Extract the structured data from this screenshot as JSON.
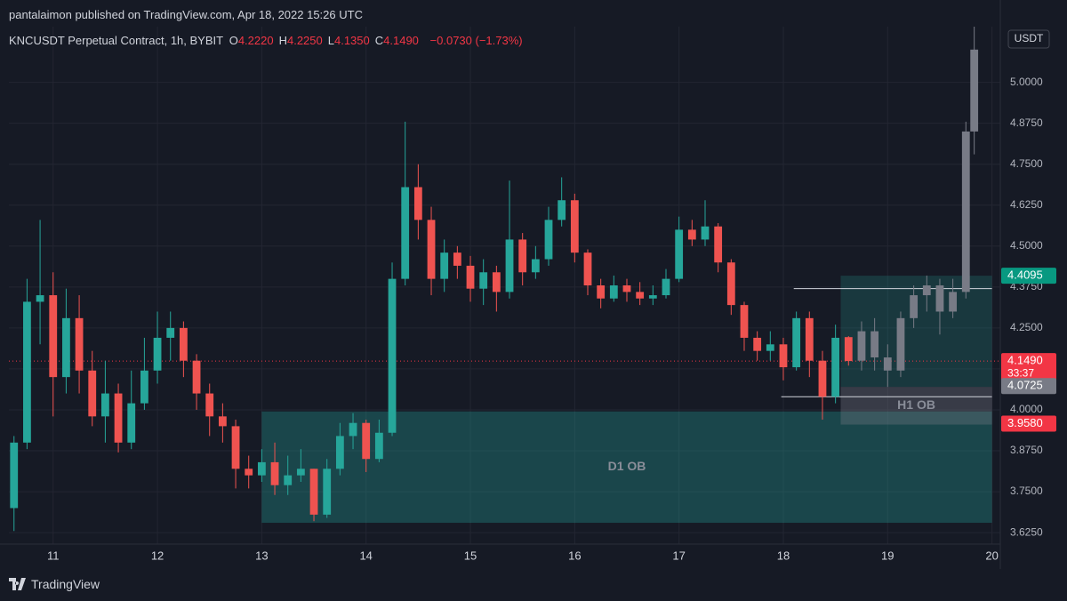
{
  "header": {
    "publisher": "pantalaimon published on TradingView.com, Apr 18, 2022 15:26 UTC",
    "symbol": "KNCUSDT Perpetual Contract, 1h, BYBIT",
    "ohlc": [
      {
        "key": "O",
        "value": "4.2220"
      },
      {
        "key": "H",
        "value": "4.2250"
      },
      {
        "key": "L",
        "value": "4.1350"
      },
      {
        "key": "C",
        "value": "4.1490"
      }
    ],
    "change": "−0.0730 (−1.73%)"
  },
  "footer": {
    "brand": "TradingView"
  },
  "chart_data": {
    "type": "candlestick",
    "currency": "USDT",
    "up_color": "#26a69a",
    "down_color": "#ef5350",
    "ghost_color": "#787b86",
    "grid": true,
    "xlim": [
      10.576,
      20.08
    ],
    "ylim": [
      3.59,
      5.17
    ],
    "xticks": [
      11,
      12,
      13,
      14,
      15,
      16,
      17,
      18,
      19,
      20
    ],
    "yticks": [
      {
        "value": 3.625,
        "label": "3.6250"
      },
      {
        "value": 3.75,
        "label": "3.7500"
      },
      {
        "value": 3.875,
        "label": "3.8750"
      },
      {
        "value": 4.0,
        "label": "4.0000"
      },
      {
        "value": 4.125,
        "label": "4.1250"
      },
      {
        "value": 4.25,
        "label": "4.2500"
      },
      {
        "value": 4.375,
        "label": "4.3750"
      },
      {
        "value": 4.5,
        "label": "4.5000"
      },
      {
        "value": 4.625,
        "label": "4.6250"
      },
      {
        "value": 4.75,
        "label": "4.7500"
      },
      {
        "value": 4.875,
        "label": "4.8750"
      },
      {
        "value": 5.0,
        "label": "5.0000"
      }
    ],
    "candles": {
      "x": [
        10.625,
        10.75,
        10.875,
        11.0,
        11.125,
        11.25,
        11.375,
        11.5,
        11.625,
        11.75,
        11.875,
        12.0,
        12.125,
        12.25,
        12.375,
        12.5,
        12.625,
        12.75,
        12.875,
        13.0,
        13.125,
        13.25,
        13.375,
        13.5,
        13.625,
        13.75,
        13.875,
        14.0,
        14.125,
        14.25,
        14.375,
        14.5,
        14.625,
        14.75,
        14.875,
        15.0,
        15.125,
        15.25,
        15.375,
        15.5,
        15.625,
        15.75,
        15.875,
        16.0,
        16.125,
        16.25,
        16.375,
        16.5,
        16.625,
        16.75,
        16.875,
        17.0,
        17.125,
        17.25,
        17.375,
        17.5,
        17.625,
        17.75,
        17.875,
        18.0,
        18.125,
        18.25,
        18.375,
        18.5,
        18.625
      ],
      "open": [
        3.7,
        3.9,
        4.33,
        4.35,
        4.1,
        4.28,
        4.12,
        3.98,
        4.05,
        3.9,
        4.02,
        4.12,
        4.22,
        4.25,
        4.15,
        4.05,
        3.98,
        3.95,
        3.82,
        3.8,
        3.84,
        3.77,
        3.8,
        3.82,
        3.68,
        3.82,
        3.92,
        3.96,
        3.85,
        3.93,
        4.4,
        4.68,
        4.58,
        4.4,
        4.48,
        4.44,
        4.37,
        4.42,
        4.36,
        4.52,
        4.42,
        4.46,
        4.58,
        4.64,
        4.48,
        4.38,
        4.34,
        4.38,
        4.36,
        4.34,
        4.35,
        4.4,
        4.55,
        4.52,
        4.56,
        4.45,
        4.32,
        4.22,
        4.18,
        4.2,
        4.13,
        4.28,
        4.15,
        4.04,
        4.222
      ],
      "high": [
        3.92,
        4.4,
        4.58,
        4.42,
        4.37,
        4.35,
        4.18,
        4.15,
        4.08,
        4.12,
        4.22,
        4.3,
        4.3,
        4.27,
        4.17,
        4.08,
        4.02,
        3.97,
        3.86,
        3.88,
        3.9,
        3.86,
        3.88,
        3.82,
        3.85,
        3.96,
        3.99,
        3.97,
        3.97,
        4.45,
        4.88,
        4.75,
        4.62,
        4.52,
        4.5,
        4.47,
        4.46,
        4.44,
        4.7,
        4.54,
        4.5,
        4.62,
        4.71,
        4.66,
        4.49,
        4.4,
        4.41,
        4.4,
        4.39,
        4.38,
        4.43,
        4.59,
        4.58,
        4.64,
        4.57,
        4.46,
        4.33,
        4.24,
        4.24,
        4.22,
        4.3,
        4.3,
        4.18,
        4.26,
        4.225
      ],
      "low": [
        3.63,
        3.88,
        4.2,
        3.98,
        4.05,
        4.05,
        3.95,
        3.9,
        3.87,
        3.88,
        4.0,
        4.08,
        4.15,
        4.1,
        4.0,
        3.92,
        3.9,
        3.76,
        3.76,
        3.78,
        3.74,
        3.74,
        3.78,
        3.66,
        3.67,
        3.8,
        3.88,
        3.81,
        3.84,
        3.92,
        4.38,
        4.52,
        4.35,
        4.36,
        4.4,
        4.33,
        4.32,
        4.3,
        4.34,
        4.38,
        4.4,
        4.44,
        4.56,
        4.45,
        4.35,
        4.31,
        4.33,
        4.33,
        4.32,
        4.32,
        4.34,
        4.39,
        4.5,
        4.5,
        4.42,
        4.29,
        4.18,
        4.15,
        4.15,
        4.09,
        4.12,
        4.1,
        3.97,
        4.02,
        4.135
      ],
      "close": [
        3.9,
        4.33,
        4.35,
        4.1,
        4.28,
        4.12,
        3.98,
        4.05,
        3.9,
        4.02,
        4.12,
        4.22,
        4.25,
        4.15,
        4.05,
        3.98,
        3.95,
        3.82,
        3.8,
        3.84,
        3.77,
        3.8,
        3.82,
        3.68,
        3.82,
        3.92,
        3.96,
        3.85,
        3.93,
        4.4,
        4.68,
        4.58,
        4.4,
        4.48,
        4.44,
        4.37,
        4.42,
        4.36,
        4.52,
        4.42,
        4.46,
        4.58,
        4.64,
        4.48,
        4.38,
        4.34,
        4.38,
        4.36,
        4.34,
        4.35,
        4.4,
        4.55,
        4.52,
        4.56,
        4.45,
        4.32,
        4.22,
        4.18,
        4.2,
        4.13,
        4.28,
        4.15,
        4.04,
        4.22,
        4.149
      ]
    },
    "projection": {
      "x": [
        18.75,
        18.875,
        19.0,
        19.125,
        19.25,
        19.375,
        19.5,
        19.625,
        19.75,
        19.83
      ],
      "open": [
        4.15,
        4.24,
        4.16,
        4.12,
        4.28,
        4.35,
        4.38,
        4.3,
        4.36,
        4.85
      ],
      "high": [
        4.27,
        4.28,
        4.2,
        4.3,
        4.38,
        4.41,
        4.4,
        4.4,
        4.88,
        5.17
      ],
      "low": [
        4.12,
        4.12,
        4.07,
        4.1,
        4.25,
        4.3,
        4.23,
        4.28,
        4.34,
        4.78
      ],
      "close": [
        4.24,
        4.16,
        4.12,
        4.28,
        4.35,
        4.38,
        4.3,
        4.36,
        4.85,
        5.1
      ]
    },
    "zones": [
      {
        "label": "D1 OB",
        "x": [
          13.0,
          20.0
        ],
        "y": [
          3.655,
          3.995
        ],
        "color": "rgba(38,166,154,0.32)"
      },
      {
        "x": [
          18.55,
          20.0
        ],
        "y": [
          4.07,
          4.4095
        ],
        "color": "rgba(38,166,154,0.22)"
      },
      {
        "label": "H1 OB",
        "x": [
          18.55,
          20.0
        ],
        "y": [
          3.955,
          4.07
        ],
        "color": "rgba(120,123,134,0.35)"
      }
    ],
    "lines": [
      {
        "x": [
          18.1,
          20.0
        ],
        "y": 4.37
      },
      {
        "x": [
          17.98,
          20.0
        ],
        "y": 4.04
      }
    ],
    "last_price": 4.149,
    "price_labels": [
      {
        "value": 4.4095,
        "label": "4.4095",
        "color": "#089981"
      },
      {
        "value": 4.149,
        "label": "4.1490",
        "sub": "33:37",
        "color": "#f23645"
      },
      {
        "value": 4.0725,
        "label": "4.0725",
        "color": "#787b86"
      },
      {
        "value": 3.958,
        "label": "3.9580",
        "color": "#f23645"
      }
    ]
  }
}
